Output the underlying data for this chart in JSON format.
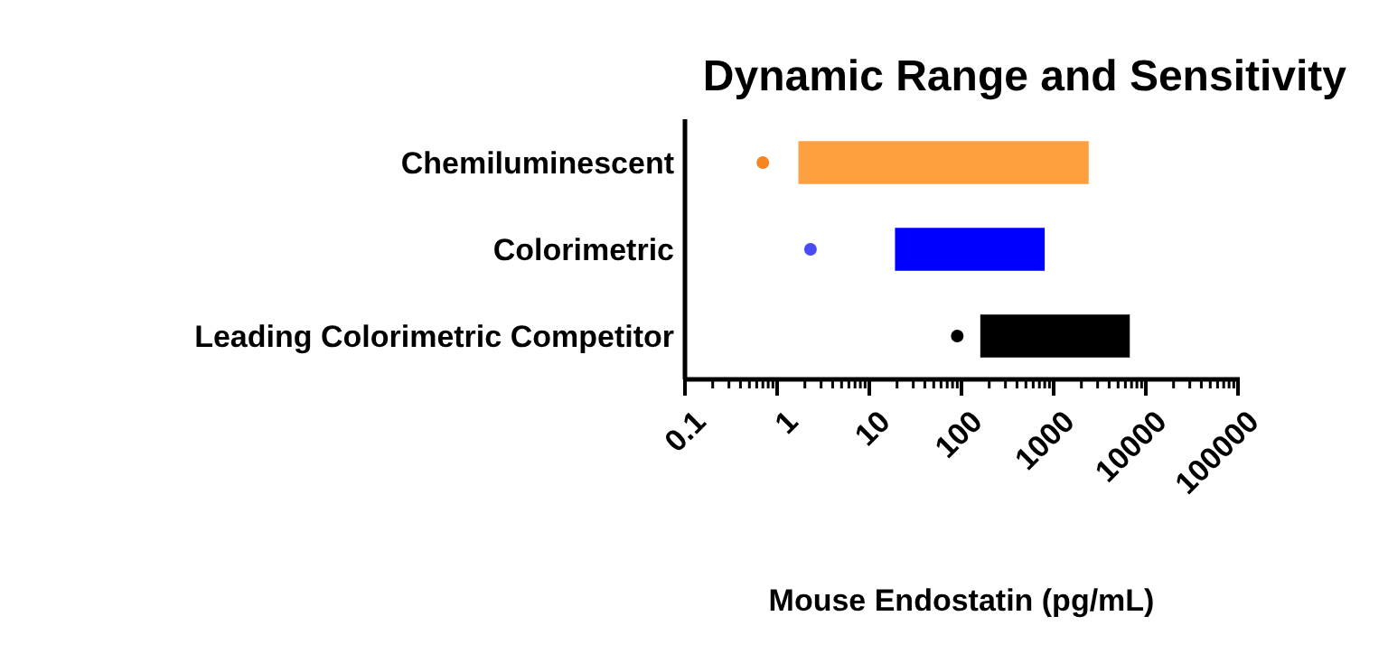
{
  "chart_data": {
    "type": "bar",
    "orientation": "horizontal",
    "title": "Dynamic Range and Sensitivity",
    "xlabel": "Mouse Endostatin (pg/mL)",
    "log": "x",
    "grid": false,
    "categories": [
      "Chemiluminescent",
      "Colorimetric",
      "Leading Colorimetric Competitor"
    ],
    "series": [
      {
        "base": [
          1.7,
          19,
          160
        ],
        "values": [
          2398,
          781,
          6540
        ],
        "colors": [
          "#ffa040",
          "#0000ff",
          "#000000"
        ]
      },
      {
        "type": "scatter",
        "values": [
          0.7,
          2.3,
          90
        ],
        "colors": [
          "#f5861f",
          "#4b4bf5",
          "#000000"
        ]
      }
    ],
    "xlim": [
      0.1,
      100000
    ],
    "xticks": [
      0.1,
      {
        "value": 0.2,
        "label": null
      },
      {
        "value": 0.3,
        "label": null
      },
      {
        "value": 0.4,
        "label": null
      },
      {
        "value": 0.5,
        "label": null
      },
      {
        "value": 0.6,
        "label": null
      },
      {
        "value": 0.7,
        "label": null
      },
      {
        "value": 0.8,
        "label": null
      },
      {
        "value": 0.9,
        "label": null
      },
      1,
      {
        "value": 2,
        "label": null
      },
      {
        "value": 3,
        "label": null
      },
      {
        "value": 4,
        "label": null
      },
      {
        "value": 5,
        "label": null
      },
      {
        "value": 6,
        "label": null
      },
      {
        "value": 7,
        "label": null
      },
      {
        "value": 8,
        "label": null
      },
      {
        "value": 9,
        "label": null
      },
      10,
      {
        "value": 20,
        "label": null
      },
      {
        "value": 30,
        "label": null
      },
      {
        "value": 40,
        "label": null
      },
      {
        "value": 50,
        "label": null
      },
      {
        "value": 60,
        "label": null
      },
      {
        "value": 70,
        "label": null
      },
      {
        "value": 80,
        "label": null
      },
      {
        "value": 90,
        "label": null
      },
      100,
      {
        "value": 200,
        "label": null
      },
      {
        "value": 300,
        "label": null
      },
      {
        "value": 400,
        "label": null
      },
      {
        "value": 500,
        "label": null
      },
      {
        "value": 600,
        "label": null
      },
      {
        "value": 700,
        "label": null
      },
      {
        "value": 800,
        "label": null
      },
      {
        "value": 900,
        "label": null
      },
      1000,
      {
        "value": 2000,
        "label": null
      },
      {
        "value": 3000,
        "label": null
      },
      {
        "value": 4000,
        "label": null
      },
      {
        "value": 5000,
        "label": null
      },
      {
        "value": 6000,
        "label": null
      },
      {
        "value": 7000,
        "label": null
      },
      {
        "value": 8000,
        "label": null
      },
      {
        "value": 9000,
        "label": null
      },
      10000,
      {
        "value": 20000,
        "label": null
      },
      {
        "value": 30000,
        "label": null
      },
      {
        "value": 40000,
        "label": null
      },
      {
        "value": 50000,
        "label": null
      },
      {
        "value": 60000,
        "label": null
      },
      {
        "value": 70000,
        "label": null
      },
      {
        "value": 80000,
        "label": null
      },
      {
        "value": 90000,
        "label": null
      },
      100000
    ]
  }
}
